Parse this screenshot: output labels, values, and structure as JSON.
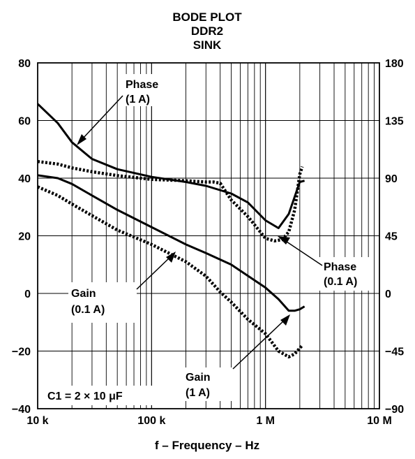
{
  "chart_data": {
    "type": "line",
    "title_lines": [
      "BODE PLOT",
      "DDR2",
      "SINK"
    ],
    "xlabel": "f – Frequency – Hz",
    "x_scale": "log",
    "xlim": [
      10000,
      10000000
    ],
    "ylim": [
      -40,
      80
    ],
    "y2lim": [
      -90,
      180
    ],
    "grid": true,
    "x_ticks": [
      {
        "value": 10000,
        "label": "10 k"
      },
      {
        "value": 100000,
        "label": "100 k"
      },
      {
        "value": 1000000,
        "label": "1 M"
      },
      {
        "value": 10000000,
        "label": "10 M"
      }
    ],
    "y_ticks": [
      {
        "value": 80,
        "label": "80"
      },
      {
        "value": 60,
        "label": "60"
      },
      {
        "value": 40,
        "label": "40"
      },
      {
        "value": 20,
        "label": "20"
      },
      {
        "value": 0,
        "label": "0"
      },
      {
        "value": -20,
        "label": "−20"
      },
      {
        "value": -40,
        "label": "−40"
      }
    ],
    "y2_ticks": [
      {
        "value": 180,
        "label": "180"
      },
      {
        "value": 135,
        "label": "135"
      },
      {
        "value": 90,
        "label": "90"
      },
      {
        "value": 45,
        "label": "45"
      },
      {
        "value": 0,
        "label": "0"
      },
      {
        "value": -45,
        "label": "−45"
      },
      {
        "value": -90,
        "label": "−90"
      }
    ],
    "series": [
      {
        "name": "Phase (1 A)",
        "axis": "right",
        "style": "solid",
        "x": [
          10000,
          15000,
          20000,
          30000,
          50000,
          100000,
          200000,
          300000,
          500000,
          700000,
          1000000,
          1300000,
          1600000,
          2000000,
          2200000
        ],
        "y": [
          148,
          133,
          118,
          105,
          97,
          91,
          87,
          84,
          78,
          71,
          57,
          51,
          62,
          87,
          88
        ]
      },
      {
        "name": "Phase (0.1 A)",
        "axis": "right",
        "style": "dotted",
        "x": [
          10000,
          15000,
          20000,
          30000,
          50000,
          100000,
          200000,
          300000,
          350000,
          400000,
          500000,
          700000,
          900000,
          1000000,
          1200000,
          1400000,
          1600000,
          1800000,
          2000000,
          2100000
        ],
        "y": [
          103,
          101,
          98,
          95,
          92,
          89,
          88,
          87,
          87,
          86,
          73,
          60,
          48,
          43,
          41,
          42,
          48,
          65,
          93,
          99
        ]
      },
      {
        "name": "Gain (1 A)",
        "axis": "left",
        "style": "solid",
        "x": [
          10000,
          15000,
          20000,
          30000,
          50000,
          100000,
          200000,
          300000,
          500000,
          1000000,
          1300000,
          1600000,
          1800000,
          2000000,
          2200000
        ],
        "y": [
          41,
          40,
          38,
          34,
          29,
          23,
          17,
          14,
          10,
          2,
          -2,
          -6,
          -6,
          -5.5,
          -4.5
        ]
      },
      {
        "name": "Gain (0.1 A)",
        "axis": "left",
        "style": "dotted",
        "x": [
          10000,
          15000,
          20000,
          30000,
          50000,
          100000,
          200000,
          300000,
          400000,
          500000,
          700000,
          1000000,
          1300000,
          1600000,
          1800000,
          2000000,
          2100000
        ],
        "y": [
          37,
          34,
          31,
          27,
          22,
          17,
          11,
          6,
          0.5,
          -3,
          -9,
          -14,
          -20,
          -22,
          -21,
          -19,
          -18
        ]
      }
    ],
    "annotations": [
      {
        "lines": [
          "Phase",
          "(1 A)"
        ]
      },
      {
        "lines": [
          "Phase",
          "(0.1 A)"
        ]
      },
      {
        "lines": [
          "Gain",
          "(0.1 A)"
        ]
      },
      {
        "lines": [
          "Gain",
          "(1 A)"
        ]
      },
      {
        "lines": [
          "C1 = 2 × 10 μF"
        ]
      }
    ]
  }
}
